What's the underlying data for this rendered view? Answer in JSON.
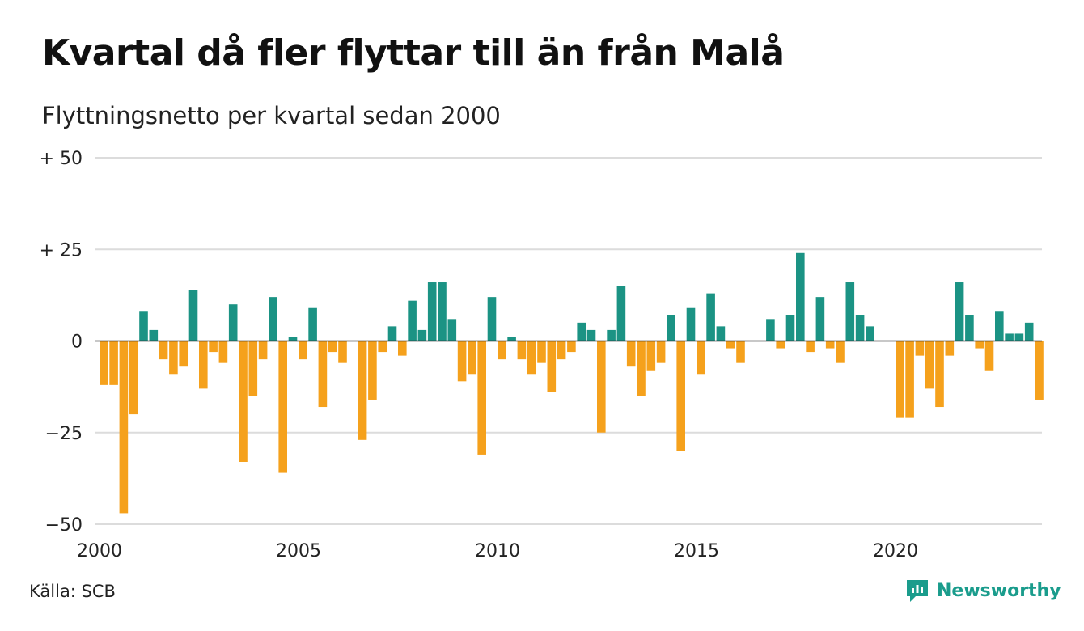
{
  "header": {
    "title": "Kvartal då fler flyttar till än från Malå",
    "subtitle": "Flyttningsnetto per kvartal sedan 2000"
  },
  "footer": {
    "source": "Källa: SCB",
    "brand": "Newsworthy",
    "brand_icon": "newsworthy-logo-icon"
  },
  "colors": {
    "positive": "#1b9384",
    "negative": "#f5a11c",
    "grid": "#dcdcdc",
    "baseline": "#222222",
    "brand": "#1a9c8c"
  },
  "chart_data": {
    "type": "bar",
    "title": "Kvartal då fler flyttar till än från Malå",
    "subtitle": "Flyttningsnetto per kvartal sedan 2000",
    "xlabel": "",
    "ylabel": "",
    "ylim": [
      -50,
      50
    ],
    "y_ticks": [
      {
        "value": 50,
        "label": "+ 50"
      },
      {
        "value": 25,
        "label": "+ 25"
      },
      {
        "value": 0,
        "label": "0"
      },
      {
        "value": -25,
        "label": "−25"
      },
      {
        "value": -50,
        "label": "−50"
      }
    ],
    "x_ticks": [
      {
        "year": 2000,
        "label": "2000"
      },
      {
        "year": 2005,
        "label": "2005"
      },
      {
        "year": 2010,
        "label": "2010"
      },
      {
        "year": 2015,
        "label": "2015"
      },
      {
        "year": 2020,
        "label": "2020"
      }
    ],
    "start": "2000 Q1",
    "grid": true,
    "legend": "none",
    "values": [
      -12,
      -12,
      -47,
      -20,
      8,
      3,
      -5,
      -9,
      -7,
      14,
      -13,
      -3,
      -6,
      10,
      -33,
      -15,
      -5,
      12,
      -36,
      1,
      -5,
      9,
      -18,
      -3,
      -6,
      0,
      -27,
      -16,
      -3,
      4,
      -4,
      11,
      3,
      16,
      16,
      6,
      -11,
      -9,
      -31,
      12,
      -5,
      1,
      -5,
      -9,
      -6,
      -14,
      -5,
      -3,
      5,
      3,
      -25,
      3,
      15,
      -7,
      -15,
      -8,
      -6,
      7,
      -30,
      9,
      -9,
      13,
      4,
      -2,
      -6,
      0,
      0,
      6,
      -2,
      7,
      24,
      -3,
      12,
      -2,
      -6,
      16,
      7,
      4,
      0,
      0,
      -21,
      -21,
      -4,
      -13,
      -18,
      -4,
      16,
      7,
      -2,
      -8,
      8,
      2,
      2,
      5,
      -16
    ]
  }
}
